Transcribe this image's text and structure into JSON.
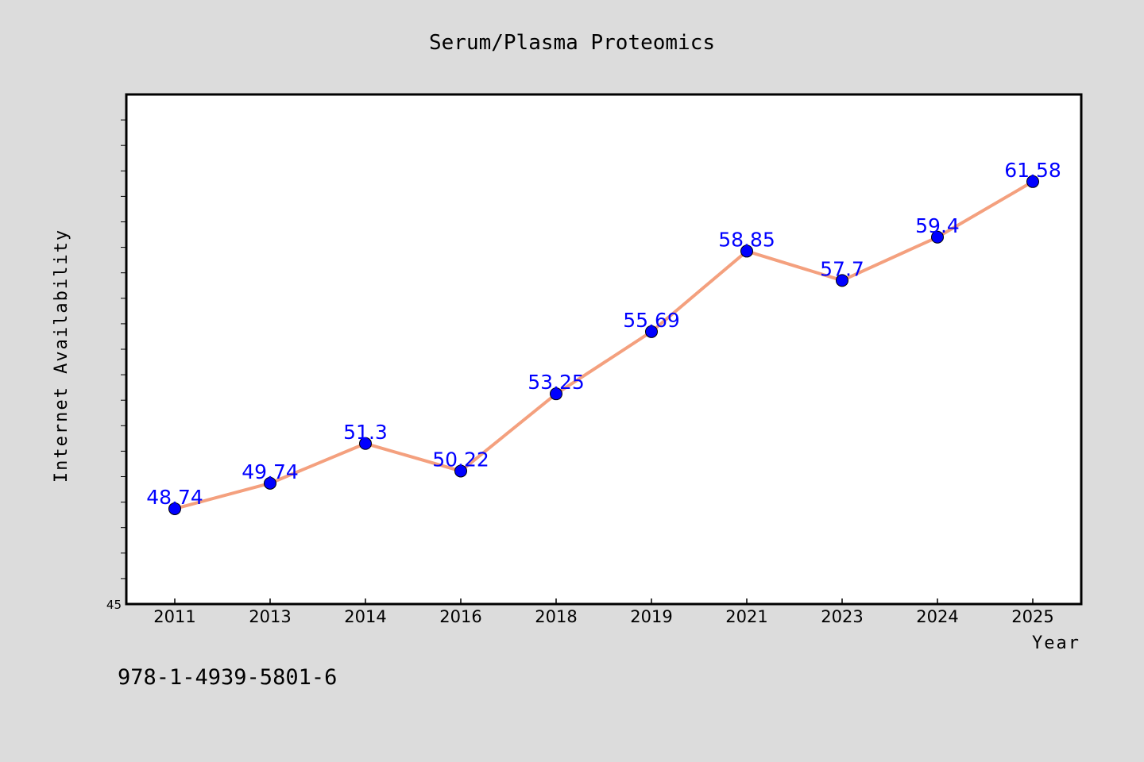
{
  "chart_data": {
    "type": "line",
    "title": "Serum/Plasma Proteomics",
    "xlabel": "Year",
    "ylabel": "Internet Availability",
    "categories": [
      "2011",
      "2013",
      "2014",
      "2016",
      "2018",
      "2019",
      "2021",
      "2023",
      "2024",
      "2025"
    ],
    "series": [
      {
        "values": [
          48.74,
          49.74,
          51.3,
          50.22,
          53.25,
          55.69,
          58.85,
          57.7,
          59.4,
          61.58
        ],
        "labels": [
          "48.74",
          "49.74",
          "51.3",
          "50.22",
          "53.25",
          "55.69",
          "58.85",
          "57.7",
          "59.4",
          "61.58"
        ],
        "line_color": "#f4a07e",
        "marker_color": "#0000ff"
      }
    ],
    "ylim": [
      45,
      65
    ],
    "y_min_label": "45",
    "grid": false,
    "legend": "none"
  },
  "footnote": "978-1-4939-5801-6",
  "colors": {
    "background": "#dcdcdc",
    "plot_area": "#ffffff",
    "line": "#f4a07e",
    "marker": "#0000ff",
    "data_label": "#0000ff"
  }
}
